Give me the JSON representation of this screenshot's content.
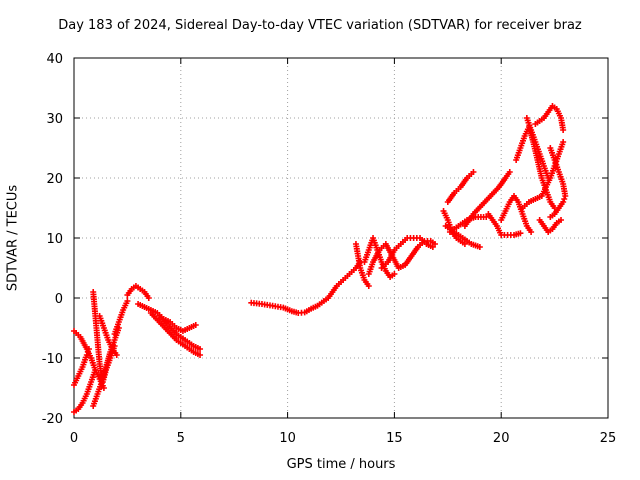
{
  "chart_data": {
    "type": "scatter",
    "title": "Day 183 of 2024, Sidereal Day-to-day VTEC variation (SDTVAR) for receiver braz",
    "xlabel": "GPS time / hours",
    "ylabel": "SDTVAR / TECUs",
    "xlim": [
      0,
      25
    ],
    "ylim": [
      -20,
      40
    ],
    "xticks": [
      0,
      5,
      10,
      15,
      20,
      25
    ],
    "yticks": [
      -20,
      -10,
      0,
      10,
      20,
      30,
      40
    ],
    "grid": true,
    "marker": "+",
    "marker_color": "#ff0000",
    "series": [
      {
        "name": "seg1",
        "points": [
          [
            0.0,
            -5.5
          ],
          [
            0.3,
            -6.5
          ],
          [
            0.6,
            -8.5
          ],
          [
            0.8,
            -10
          ],
          [
            1.0,
            -12
          ],
          [
            1.2,
            -13.5
          ],
          [
            1.4,
            -15
          ]
        ]
      },
      {
        "name": "seg2",
        "points": [
          [
            0.0,
            -14.5
          ],
          [
            0.2,
            -13
          ],
          [
            0.4,
            -11.5
          ],
          [
            0.6,
            -9.5
          ],
          [
            0.7,
            -8.5
          ]
        ]
      },
      {
        "name": "seg3",
        "points": [
          [
            0.0,
            -19
          ],
          [
            0.2,
            -18.5
          ],
          [
            0.4,
            -17.5
          ],
          [
            0.6,
            -16
          ],
          [
            0.8,
            -14
          ],
          [
            1.0,
            -12
          ]
        ]
      },
      {
        "name": "seg4",
        "points": [
          [
            0.9,
            1
          ],
          [
            1.0,
            -3
          ],
          [
            1.1,
            -7
          ],
          [
            1.2,
            -11
          ],
          [
            1.35,
            -14
          ],
          [
            1.5,
            -12
          ],
          [
            1.7,
            -10
          ],
          [
            1.9,
            -8
          ]
        ]
      },
      {
        "name": "seg5",
        "points": [
          [
            0.9,
            -18
          ],
          [
            1.1,
            -16
          ],
          [
            1.3,
            -14
          ],
          [
            1.5,
            -11.5
          ],
          [
            1.7,
            -9
          ],
          [
            1.9,
            -7
          ],
          [
            2.1,
            -5
          ]
        ]
      },
      {
        "name": "seg6",
        "points": [
          [
            1.2,
            -3
          ],
          [
            1.4,
            -5
          ],
          [
            1.6,
            -7
          ],
          [
            1.8,
            -8.5
          ],
          [
            2.0,
            -9.5
          ]
        ]
      },
      {
        "name": "seg7",
        "points": [
          [
            1.9,
            -6
          ],
          [
            2.1,
            -4
          ],
          [
            2.3,
            -2
          ],
          [
            2.5,
            -0.5
          ]
        ]
      },
      {
        "name": "seg8",
        "points": [
          [
            2.5,
            0.5
          ],
          [
            2.7,
            1.5
          ],
          [
            2.9,
            2
          ],
          [
            3.1,
            1.5
          ],
          [
            3.3,
            1
          ],
          [
            3.5,
            0
          ]
        ]
      },
      {
        "name": "seg9",
        "points": [
          [
            3.0,
            -1
          ],
          [
            3.3,
            -1.5
          ],
          [
            3.6,
            -2
          ],
          [
            3.9,
            -2.5
          ],
          [
            4.2,
            -3.5
          ],
          [
            4.5,
            -4
          ],
          [
            4.8,
            -5
          ],
          [
            5.1,
            -5.5
          ],
          [
            5.4,
            -5
          ],
          [
            5.7,
            -4.5
          ]
        ]
      },
      {
        "name": "seg10",
        "points": [
          [
            3.6,
            -2.5
          ],
          [
            4.0,
            -4
          ],
          [
            4.4,
            -5.5
          ],
          [
            4.8,
            -7
          ],
          [
            5.2,
            -8
          ],
          [
            5.6,
            -9
          ],
          [
            5.9,
            -9.5
          ]
        ]
      },
      {
        "name": "seg11",
        "points": [
          [
            4.0,
            -3
          ],
          [
            4.4,
            -4.5
          ],
          [
            4.8,
            -6
          ],
          [
            5.2,
            -7
          ],
          [
            5.6,
            -8
          ],
          [
            5.9,
            -8.5
          ]
        ]
      },
      {
        "name": "seg12",
        "points": [
          [
            8.3,
            -0.8
          ],
          [
            8.8,
            -1
          ],
          [
            9.3,
            -1.3
          ],
          [
            9.8,
            -1.6
          ],
          [
            10.2,
            -2.2
          ],
          [
            10.5,
            -2.5
          ],
          [
            10.8,
            -2.4
          ],
          [
            11.1,
            -1.8
          ],
          [
            11.4,
            -1.3
          ],
          [
            11.7,
            -0.5
          ],
          [
            11.9,
            0
          ],
          [
            12.1,
            1
          ],
          [
            12.3,
            2
          ],
          [
            12.6,
            3
          ],
          [
            12.9,
            4
          ],
          [
            13.2,
            5
          ],
          [
            13.4,
            6
          ]
        ]
      },
      {
        "name": "seg13",
        "points": [
          [
            13.2,
            9
          ],
          [
            13.3,
            7
          ],
          [
            13.4,
            5
          ],
          [
            13.6,
            3
          ],
          [
            13.8,
            2
          ]
        ]
      },
      {
        "name": "seg14",
        "points": [
          [
            13.6,
            6
          ],
          [
            13.8,
            8
          ],
          [
            14.0,
            10
          ],
          [
            14.2,
            8
          ],
          [
            14.4,
            6
          ],
          [
            14.6,
            4.5
          ],
          [
            14.8,
            3.5
          ],
          [
            15.0,
            4
          ]
        ]
      },
      {
        "name": "seg15",
        "points": [
          [
            13.8,
            4
          ],
          [
            14.0,
            6
          ],
          [
            14.3,
            8
          ],
          [
            14.6,
            9
          ],
          [
            14.9,
            7
          ],
          [
            15.2,
            5
          ],
          [
            15.5,
            5.5
          ],
          [
            15.8,
            7
          ],
          [
            16.1,
            8.5
          ],
          [
            16.4,
            9.5
          ],
          [
            16.7,
            9.5
          ],
          [
            16.9,
            9
          ]
        ]
      },
      {
        "name": "seg16",
        "points": [
          [
            14.4,
            5
          ],
          [
            14.7,
            6
          ],
          [
            15.0,
            8
          ],
          [
            15.3,
            9
          ],
          [
            15.6,
            10
          ],
          [
            15.9,
            10
          ],
          [
            16.2,
            10
          ],
          [
            16.5,
            9
          ],
          [
            16.8,
            8.5
          ]
        ]
      },
      {
        "name": "seg17",
        "points": [
          [
            17.3,
            14.5
          ],
          [
            17.5,
            13
          ],
          [
            17.7,
            11
          ],
          [
            17.9,
            10
          ],
          [
            18.1,
            9.5
          ],
          [
            18.3,
            9
          ]
        ]
      },
      {
        "name": "seg18",
        "points": [
          [
            17.5,
            16
          ],
          [
            17.8,
            17.5
          ],
          [
            18.1,
            18.5
          ],
          [
            18.4,
            20
          ],
          [
            18.7,
            21
          ]
        ]
      },
      {
        "name": "seg19",
        "points": [
          [
            17.4,
            12
          ],
          [
            17.8,
            11
          ],
          [
            18.2,
            10
          ],
          [
            18.6,
            9
          ],
          [
            19.0,
            8.5
          ]
        ]
      },
      {
        "name": "seg20",
        "points": [
          [
            17.6,
            11
          ],
          [
            18.0,
            12
          ],
          [
            18.4,
            13
          ],
          [
            18.8,
            13.5
          ],
          [
            19.3,
            13.5
          ]
        ]
      },
      {
        "name": "seg21",
        "points": [
          [
            18.3,
            12
          ],
          [
            18.7,
            14
          ],
          [
            19.1,
            15.5
          ],
          [
            19.5,
            17
          ],
          [
            19.9,
            18.5
          ],
          [
            20.2,
            20
          ],
          [
            20.4,
            21
          ]
        ]
      },
      {
        "name": "seg22",
        "points": [
          [
            19.4,
            14
          ],
          [
            19.6,
            13
          ],
          [
            19.8,
            12
          ],
          [
            20.0,
            10.5
          ],
          [
            20.3,
            10.5
          ],
          [
            20.6,
            10.5
          ],
          [
            20.9,
            10.8
          ]
        ]
      },
      {
        "name": "seg23",
        "points": [
          [
            20.0,
            13
          ],
          [
            20.2,
            14.5
          ],
          [
            20.4,
            16
          ],
          [
            20.6,
            17
          ],
          [
            20.8,
            16
          ],
          [
            21.0,
            14
          ],
          [
            21.2,
            12
          ],
          [
            21.4,
            11
          ]
        ]
      },
      {
        "name": "seg24",
        "points": [
          [
            20.7,
            23
          ],
          [
            20.9,
            25
          ],
          [
            21.1,
            27
          ],
          [
            21.3,
            28.5
          ],
          [
            21.5,
            26
          ],
          [
            21.7,
            23
          ],
          [
            21.9,
            20
          ],
          [
            22.1,
            18
          ],
          [
            22.3,
            16
          ],
          [
            22.5,
            15
          ]
        ]
      },
      {
        "name": "seg25",
        "points": [
          [
            21.2,
            30
          ],
          [
            21.4,
            28
          ],
          [
            21.6,
            26
          ],
          [
            21.8,
            24
          ],
          [
            22.0,
            22
          ],
          [
            22.2,
            20
          ]
        ]
      },
      {
        "name": "seg26",
        "points": [
          [
            21.0,
            15
          ],
          [
            21.3,
            16
          ],
          [
            21.6,
            16.5
          ],
          [
            21.9,
            17
          ],
          [
            22.1,
            18.5
          ],
          [
            22.3,
            20
          ],
          [
            22.5,
            22
          ],
          [
            22.7,
            24
          ],
          [
            22.9,
            26
          ]
        ]
      },
      {
        "name": "seg27",
        "points": [
          [
            21.6,
            29
          ],
          [
            21.8,
            29.5
          ],
          [
            22.0,
            30
          ],
          [
            22.2,
            31
          ],
          [
            22.4,
            32
          ],
          [
            22.6,
            31.5
          ],
          [
            22.8,
            30
          ],
          [
            22.9,
            28
          ]
        ]
      },
      {
        "name": "seg28",
        "points": [
          [
            22.3,
            13.5
          ],
          [
            22.5,
            14
          ],
          [
            22.7,
            15
          ],
          [
            22.9,
            16
          ],
          [
            23.0,
            17
          ],
          [
            22.9,
            19
          ],
          [
            22.7,
            21
          ],
          [
            22.5,
            23
          ],
          [
            22.3,
            25
          ]
        ]
      },
      {
        "name": "seg29",
        "points": [
          [
            21.8,
            13
          ],
          [
            22.0,
            12
          ],
          [
            22.2,
            11
          ],
          [
            22.4,
            11.5
          ],
          [
            22.6,
            12.5
          ],
          [
            22.8,
            13
          ]
        ]
      }
    ]
  }
}
